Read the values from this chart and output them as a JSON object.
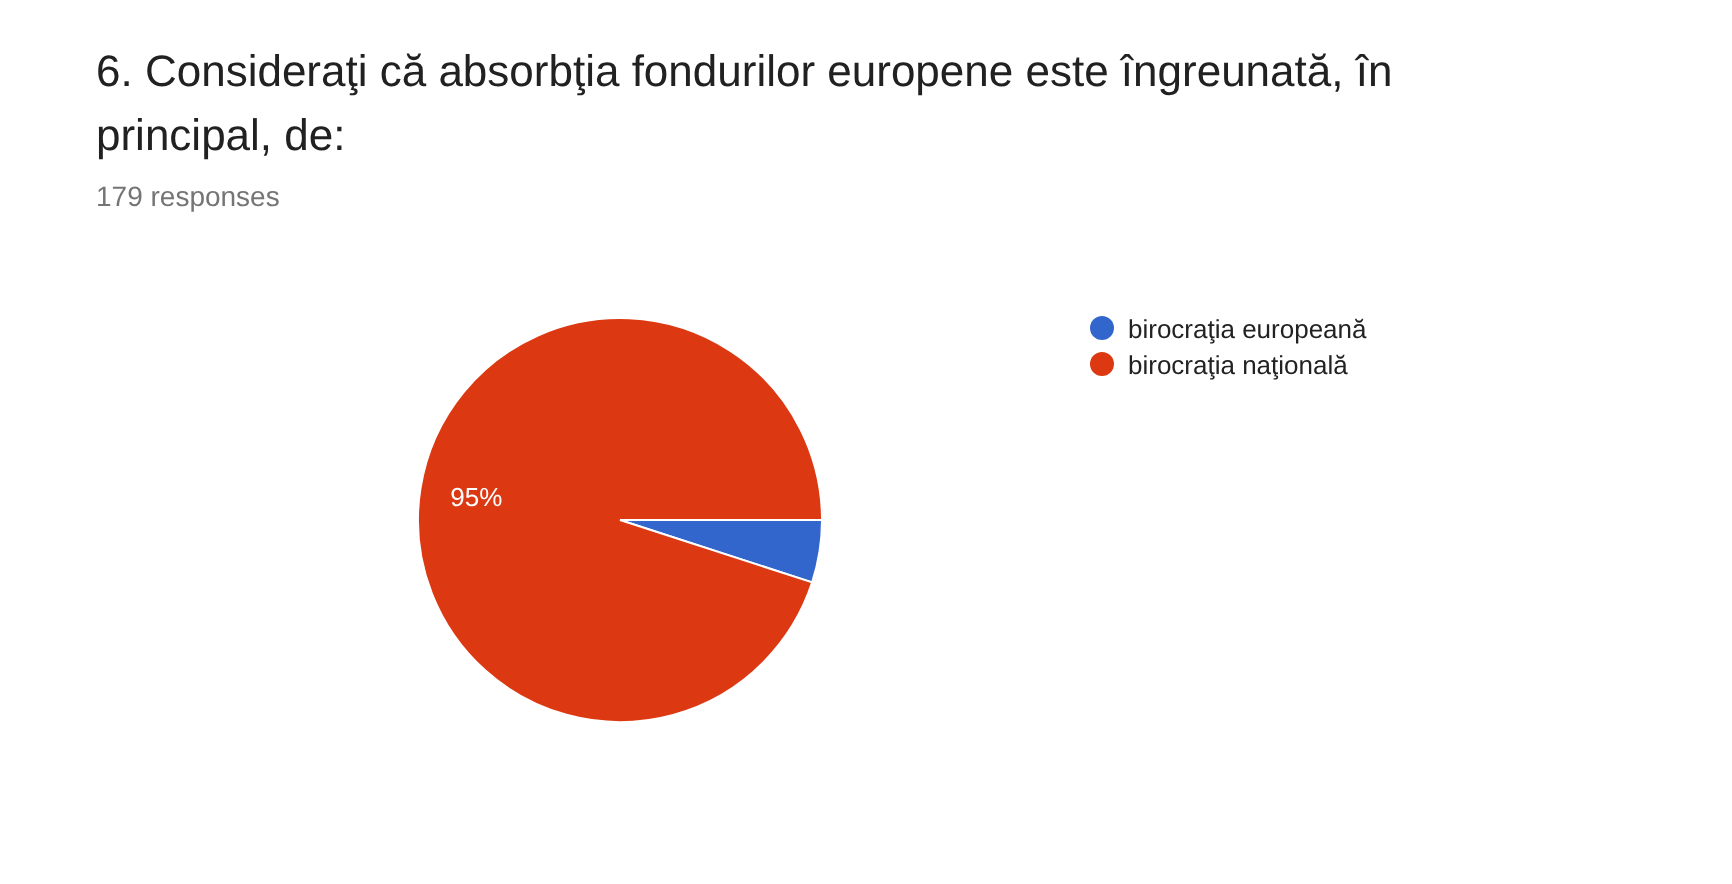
{
  "chart_data": {
    "type": "pie",
    "title": "6. Consideraţi că absorbţia fondurilor europene este îngreunată, în principal, de:",
    "subtitle": "179 responses",
    "categories": [
      "birocraţia europeană",
      "birocraţia naţională"
    ],
    "values": [
      5,
      95
    ],
    "colors": [
      "#3366cc",
      "#dc3912"
    ],
    "value_labels": [
      null,
      "95%"
    ],
    "legend": "top right"
  }
}
